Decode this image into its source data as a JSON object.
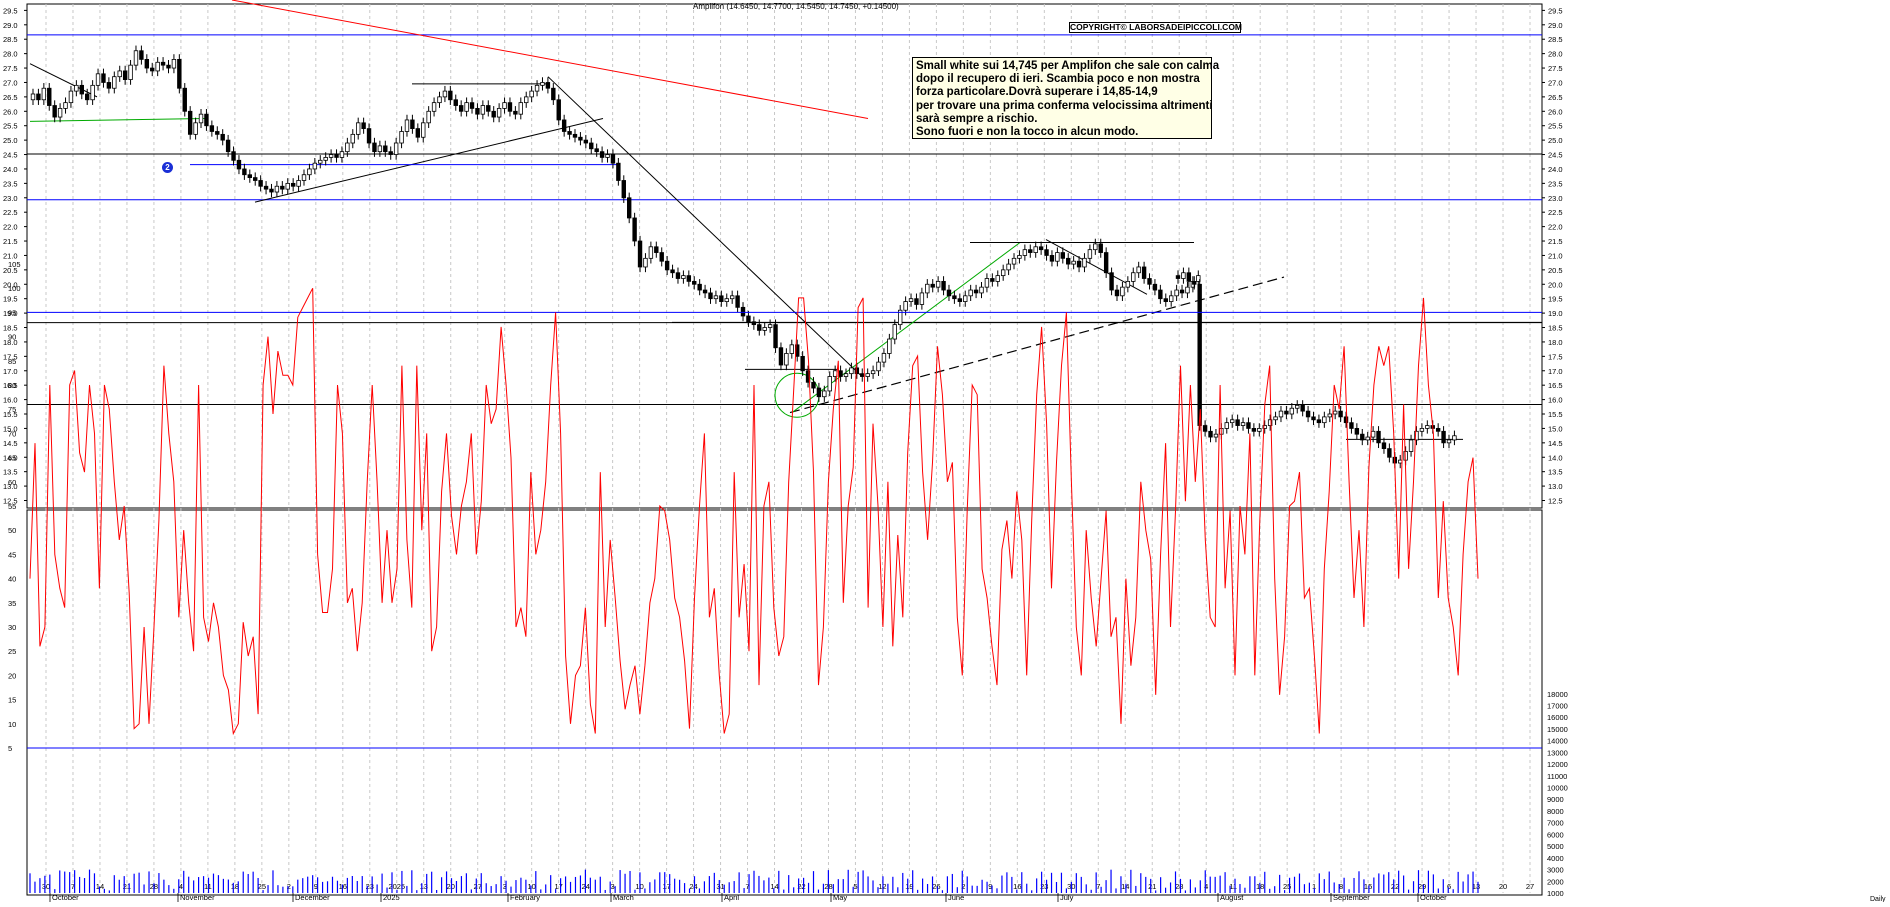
{
  "header": {
    "instrument": "Amplifon (14.6450, 14.7700, 14.5450, 14.7450, +0.14500)"
  },
  "copyright": "COPYRIGHT© LABORSADEIPICCOLI.COM",
  "note": {
    "lines": [
      "Small white sui 14,745 per Amplifon che sale con calma",
      "dopo il recupero di ieri. Scambia poco e non mostra",
      "forza particolare.Dovrà superare i 14,85-14,9",
      "per trovare una prima conferma velocissima altrimenti",
      "sarà sempre a rischio.",
      "Sono fuori e non la tocco in alcun modo."
    ]
  },
  "badge": "2",
  "x_axis": {
    "day_ticks": [
      "30",
      "7",
      "14",
      "21",
      "28",
      "4",
      "11",
      "18",
      "25",
      "2",
      "9",
      "16",
      "23",
      "2025",
      "13",
      "20",
      "27",
      "3",
      "10",
      "17",
      "24",
      "3",
      "10",
      "17",
      "24",
      "31",
      "7",
      "14",
      "22",
      "28",
      "5",
      "12",
      "19",
      "26",
      "2",
      "9",
      "16",
      "23",
      "30",
      "7",
      "14",
      "21",
      "28",
      "4",
      "11",
      "18",
      "25",
      "1",
      "8",
      "15",
      "22",
      "29",
      "6",
      "13",
      "20",
      "27"
    ],
    "month_labels": [
      "October",
      "November",
      "December",
      "2025",
      "February",
      "March",
      "April",
      "May",
      "June",
      "July",
      "August",
      "September",
      "October"
    ],
    "end_label": "Daily"
  },
  "chart_data": [
    {
      "type": "candlestick",
      "title": "Amplifon",
      "ylim": [
        12.0,
        29.8
      ],
      "y_ticks": [
        "12.5",
        "13.0",
        "13.5",
        "14.0",
        "14.5",
        "15.0",
        "15.5",
        "16.0",
        "16.5",
        "17.0",
        "17.5",
        "18.0",
        "18.5",
        "19.0",
        "19.5",
        "20.0",
        "20.5",
        "21.0",
        "21.5",
        "22.0",
        "22.5",
        "23.0",
        "23.5",
        "24.0",
        "24.5",
        "25.0",
        "25.5",
        "26.0",
        "26.5",
        "27.0",
        "27.5",
        "28.0",
        "28.5",
        "29.0",
        "29.5"
      ],
      "grid": true,
      "levels": [
        {
          "value": 28.65,
          "color": "#0000ff"
        },
        {
          "value": 24.52,
          "color": "#000000"
        },
        {
          "value": 22.93,
          "color": "#0000ff"
        },
        {
          "value": 18.67,
          "color": "#000000"
        },
        {
          "value": 15.83,
          "color": "#000000"
        }
      ],
      "closes": [
        26.6,
        26.4,
        26.8,
        26.2,
        25.8,
        26.1,
        26.3,
        26.7,
        26.9,
        26.6,
        26.4,
        26.9,
        27.3,
        27.0,
        26.8,
        27.2,
        27.4,
        27.1,
        27.6,
        28.1,
        27.8,
        27.5,
        27.4,
        27.7,
        27.6,
        27.5,
        27.8,
        26.8,
        26.0,
        25.2,
        25.6,
        25.9,
        25.5,
        25.3,
        25.2,
        25.0,
        24.6,
        24.3,
        24.0,
        23.8,
        23.7,
        23.6,
        23.4,
        23.3,
        23.2,
        23.4,
        23.3,
        23.5,
        23.4,
        23.6,
        23.8,
        24.0,
        24.2,
        24.3,
        24.4,
        24.5,
        24.4,
        24.6,
        24.9,
        25.2,
        25.6,
        25.4,
        24.9,
        24.6,
        24.8,
        24.6,
        24.5,
        24.9,
        25.3,
        25.7,
        25.4,
        25.1,
        25.6,
        26.0,
        26.3,
        26.5,
        26.7,
        26.4,
        26.2,
        26.0,
        26.3,
        26.1,
        25.9,
        26.2,
        26.0,
        25.8,
        26.1,
        26.3,
        26.0,
        25.9,
        26.3,
        26.5,
        26.7,
        26.9,
        27.0,
        26.8,
        26.4,
        25.7,
        25.3,
        25.2,
        25.1,
        25.0,
        24.9,
        24.7,
        24.6,
        24.4,
        24.5,
        24.2,
        23.6,
        23.0,
        22.3,
        21.5,
        20.6,
        20.9,
        21.3,
        21.1,
        20.8,
        20.5,
        20.4,
        20.2,
        20.3,
        20.1,
        20.0,
        19.8,
        19.7,
        19.5,
        19.6,
        19.4,
        19.5,
        19.6,
        19.2,
        18.9,
        18.7,
        18.6,
        18.4,
        18.5,
        18.6,
        17.8,
        17.2,
        17.6,
        17.9,
        17.5,
        17.0,
        16.6,
        16.4,
        16.1,
        16.3,
        16.8,
        17.0,
        16.8,
        16.9,
        17.1,
        16.9,
        16.8,
        16.9,
        17.0,
        17.3,
        17.6,
        18.1,
        18.6,
        19.1,
        19.4,
        19.5,
        19.3,
        19.7,
        20.0,
        19.9,
        20.1,
        19.8,
        19.6,
        19.5,
        19.4,
        19.6,
        19.8,
        19.7,
        19.9,
        20.2,
        20.1,
        20.3,
        20.5,
        20.7,
        20.9,
        21.0,
        21.2,
        21.1,
        21.3,
        21.2,
        21.0,
        20.8,
        21.1,
        20.9,
        20.7,
        20.8,
        20.6,
        20.9,
        21.2,
        21.4,
        21.1,
        20.4,
        19.8,
        19.6,
        19.9,
        20.1,
        20.4,
        20.6,
        20.2,
        20.0,
        19.8,
        19.5,
        19.4,
        19.6,
        19.8,
        19.7,
        19.9,
        20.1,
        20.3,
        20.2,
        20.4,
        20.1,
        20.0,
        15.1,
        14.9,
        14.7,
        14.8,
        15.0,
        15.2,
        15.3,
        15.1,
        15.2,
        15.0,
        14.9,
        15.0,
        15.1,
        15.3,
        15.4,
        15.6,
        15.5,
        15.7,
        15.8,
        15.6,
        15.4,
        15.3,
        15.2,
        15.4,
        15.5,
        15.6,
        15.4,
        15.2,
        15.0,
        14.8,
        14.6,
        14.7,
        14.9,
        14.5,
        14.3,
        14.0,
        13.8,
        13.9,
        14.2,
        14.6,
        14.9,
        15.0,
        15.1,
        15.0,
        14.9,
        14.5,
        14.6,
        14.745
      ]
    },
    {
      "type": "line",
      "ylim": [
        0,
        100
      ],
      "y_ticks": [
        "5",
        "10",
        "15",
        "20",
        "25",
        "30",
        "35",
        "40",
        "45",
        "50",
        "55",
        "60",
        "65",
        "70",
        "75",
        "80",
        "85",
        "90",
        "95",
        "100",
        "105"
      ],
      "levels": [
        95,
        5
      ],
      "series": [
        {
          "values": [
            40,
            68,
            26,
            30,
            80,
            45,
            38,
            34,
            80,
            83,
            66,
            62,
            80,
            70,
            38,
            80,
            75,
            60,
            48,
            55,
            37,
            9,
            10,
            30,
            10,
            30,
            52,
            84,
            70,
            60,
            32,
            50,
            35,
            25,
            80,
            32,
            27,
            35,
            30,
            20,
            17,
            8,
            10,
            31,
            24,
            28,
            12,
            80,
            90,
            74,
            87,
            82,
            82,
            80,
            94,
            96,
            98,
            100,
            45,
            33,
            33,
            42,
            80,
            70,
            35,
            38,
            25,
            35,
            60,
            80,
            60,
            35,
            50,
            35,
            42,
            84,
            48,
            34,
            84,
            50,
            70,
            25,
            30,
            58,
            70,
            53,
            45,
            55,
            60,
            70,
            45,
            56,
            80,
            72,
            75,
            92,
            80,
            65,
            30,
            34,
            28,
            62,
            45,
            50,
            60,
            80,
            95,
            70,
            24,
            10,
            20,
            22,
            34,
            14,
            8,
            62,
            30,
            48,
            36,
            23,
            13,
            18,
            22,
            12,
            22,
            35,
            40,
            55,
            54,
            48,
            36,
            32,
            23,
            9,
            36,
            55,
            70,
            32,
            38,
            20,
            8,
            12,
            62,
            32,
            43,
            25,
            80,
            18,
            55,
            60,
            34,
            24,
            28,
            60,
            79,
            98,
            98,
            85,
            62,
            18,
            30,
            60,
            75,
            85,
            35,
            55,
            63,
            96,
            98,
            34,
            72,
            55,
            30,
            60,
            26,
            49,
            32,
            66,
            84,
            86,
            62,
            48,
            64,
            88,
            78,
            60,
            64,
            32,
            20,
            54,
            80,
            78,
            42,
            36,
            26,
            18,
            46,
            52,
            40,
            58,
            48,
            20,
            52,
            78,
            92,
            72,
            38,
            64,
            84,
            95,
            60,
            30,
            20,
            50,
            36,
            26,
            40,
            54,
            28,
            32,
            10,
            40,
            22,
            32,
            60,
            50,
            44,
            16,
            45,
            68,
            30,
            54,
            84,
            56,
            80,
            60,
            75,
            48,
            32,
            30,
            80,
            38,
            54,
            20,
            55,
            45,
            70,
            20,
            52,
            76,
            84,
            40,
            16,
            28,
            55,
            56,
            62,
            36,
            38,
            24,
            8,
            42,
            58,
            80,
            75,
            88,
            60,
            36,
            50,
            30,
            63,
            80,
            88,
            84,
            88,
            70,
            40,
            76,
            42,
            60,
            84,
            98,
            80,
            70,
            36,
            56,
            36,
            30,
            20,
            45,
            60,
            65,
            40
          ]
        }
      ]
    },
    {
      "type": "bar",
      "ylim": [
        0,
        18000
      ],
      "y_ticks": [
        "1000",
        "2000",
        "3000",
        "4000",
        "5000",
        "6000",
        "7000",
        "8000",
        "9000",
        "10000",
        "11000",
        "12000",
        "13000",
        "14000",
        "15000",
        "16000",
        "17000",
        "18000"
      ]
    }
  ]
}
